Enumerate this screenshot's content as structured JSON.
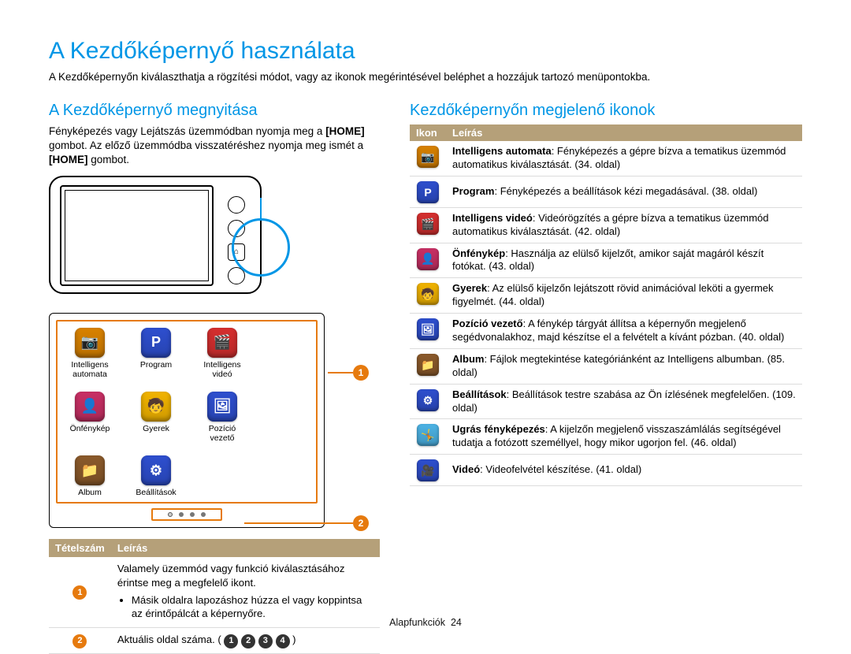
{
  "page": {
    "title": "A Kezdőképernyő használata",
    "intro": "A Kezdőképernyőn kiválaszthatja a rögzítési módot, vagy az ikonok megérintésével beléphet a hozzájuk tartozó menüpontokba.",
    "footer_section": "Alapfunkciók",
    "footer_page": "24"
  },
  "left": {
    "heading": "A Kezdőképernyő megnyitása",
    "text_1": "Fényképezés vagy Lejátszás üzemmódban nyomja meg a ",
    "home1": "[HOME]",
    "text_2": " gombot. Az előző üzemmódba visszatéréshez nyomja meg ismét a ",
    "home2": "[HOME]",
    "text_3": " gombot.",
    "apps": [
      {
        "label": "Intelligens\nautomata",
        "bg": "#d98200",
        "svg": "📷"
      },
      {
        "label": "Program",
        "bg": "#2e4fcf",
        "svg": "P"
      },
      {
        "label": "Intelligens\nvideó",
        "bg": "#d62f2f",
        "svg": "🎬"
      },
      {
        "label": "Önfénykép",
        "bg": "#c93065",
        "svg": "👤"
      },
      {
        "label": "Gyerek",
        "bg": "#f2b400",
        "svg": "🧒"
      },
      {
        "label": "Pozíció vezető",
        "bg": "#2e4fcf",
        "svg": "🖼"
      },
      {
        "label": "Album",
        "bg": "#8b5a2b",
        "svg": "📁"
      },
      {
        "label": "Beállítások",
        "bg": "#2e4fcf",
        "svg": "⚙"
      }
    ],
    "tbl_head_num": "Tételszám",
    "tbl_head_desc": "Leírás",
    "row1_desc": "Valamely üzemmód vagy funkció kiválasztásához érintse meg a megfelelő ikont.",
    "row1_bullet": "Másik oldalra lapozáshoz húzza el vagy koppintsa az érintőpálcát a képernyőre.",
    "row2_desc_pre": "Aktuális oldal száma. (",
    "row2_desc_post": ")"
  },
  "right": {
    "heading": "Kezdőképernyőn megjelenő ikonok",
    "head_icon": "Ikon",
    "head_desc": "Leírás",
    "rows": [
      {
        "bg": "#d98200",
        "glyph": "📷",
        "b": "Intelligens automata",
        "t": ": Fényképezés a gépre bízva a tematikus üzemmód automatikus kiválasztását. (34. oldal)"
      },
      {
        "bg": "#2e4fcf",
        "glyph": "P",
        "b": "Program",
        "t": ": Fényképezés a beállítások kézi megadásával. (38. oldal)"
      },
      {
        "bg": "#d62f2f",
        "glyph": "🎬",
        "b": "Intelligens videó",
        "t": ": Videórögzítés a gépre bízva a tematikus üzemmód automatikus kiválasztását. (42. oldal)"
      },
      {
        "bg": "#c93065",
        "glyph": "👤",
        "b": "Önfénykép",
        "t": ": Használja az elülső kijelzőt, amikor saját magáról készít fotókat. (43. oldal)"
      },
      {
        "bg": "#f2b400",
        "glyph": "🧒",
        "b": "Gyerek",
        "t": ": Az elülső kijelzőn lejátszott rövid animációval leköti a gyermek figyelmét. (44. oldal)"
      },
      {
        "bg": "#2e4fcf",
        "glyph": "🖼",
        "b": "Pozíció vezető",
        "t": ": A fénykép tárgyát állítsa a képernyőn megjelenő segédvonalakhoz, majd készítse el a felvételt a kívánt pózban. (40. oldal)"
      },
      {
        "bg": "#8b5a2b",
        "glyph": "📁",
        "b": "Album",
        "t": ": Fájlok megtekintése kategóriánként az Intelligens albumban. (85. oldal)"
      },
      {
        "bg": "#2e4fcf",
        "glyph": "⚙",
        "b": "Beállítások",
        "t": ": Beállítások testre szabása az Ön ízlésének megfelelően. (109. oldal)"
      },
      {
        "bg": "#4db4e6",
        "glyph": "🤸",
        "b": "Ugrás fényképezés",
        "t": ": A kijelzőn megjelenő visszaszámlálás segítségével tudatja a fotózott személlyel, hogy mikor ugorjon fel. (46. oldal)"
      },
      {
        "bg": "#2e4fcf",
        "glyph": "🎥",
        "b": "Videó",
        "t": ": Videofelvétel készítése. (41. oldal)"
      }
    ]
  },
  "colors": {
    "accent_blue": "#0096e6",
    "accent_orange": "#e67a0e",
    "header_brown": "#b5a079"
  }
}
